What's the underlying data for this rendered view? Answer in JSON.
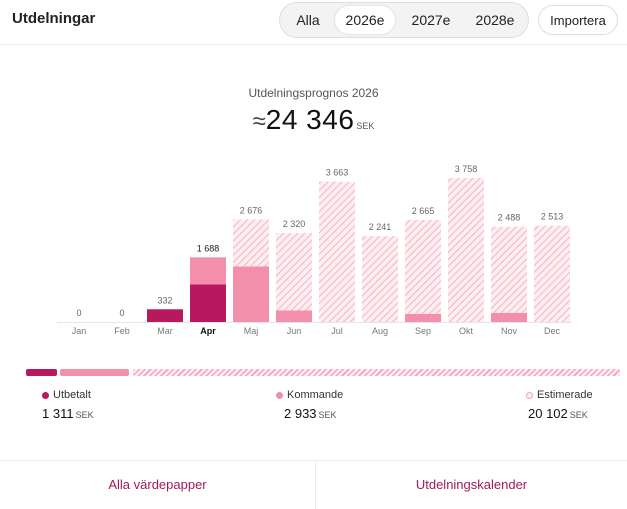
{
  "header": {
    "title": "Utdelningar",
    "tabs": [
      "Alla",
      "2026e",
      "2027e",
      "2028e"
    ],
    "active_tab": "2026e",
    "import_label": "Importera"
  },
  "forecast": {
    "title": "Utdelningsprognos 2026",
    "approx_symbol": "≈",
    "total": "24 346",
    "unit": "SEK"
  },
  "colors": {
    "paid": "#b8195e",
    "upcoming": "#f48fab",
    "estimated_stripe": "#f5a3b8",
    "estimated_bg": "#fdeef2"
  },
  "chart_data": {
    "type": "bar",
    "stacked": true,
    "categories": [
      "Jan",
      "Feb",
      "Mar",
      "Apr",
      "Maj",
      "Jun",
      "Jul",
      "Aug",
      "Sep",
      "Okt",
      "Nov",
      "Dec"
    ],
    "highlighted_category": "Apr",
    "value_labels": [
      "0",
      "0",
      "332",
      "1 688",
      "2 676",
      "2 320",
      "3 663",
      "2 241",
      "2 665",
      "3 758",
      "2 488",
      "2 513"
    ],
    "series": [
      {
        "name": "Utbetalt",
        "values": [
          0,
          0,
          332,
          979,
          0,
          0,
          0,
          0,
          0,
          0,
          0,
          0
        ]
      },
      {
        "name": "Kommande",
        "values": [
          0,
          0,
          0,
          709,
          1450,
          300,
          0,
          0,
          210,
          0,
          240,
          0
        ]
      },
      {
        "name": "Estimerade",
        "values": [
          0,
          0,
          0,
          0,
          1226,
          2020,
          3663,
          2241,
          2455,
          3758,
          2248,
          2513
        ]
      }
    ]
  },
  "summary": {
    "paid": {
      "label": "Utbetalt",
      "value": "1 311",
      "unit": "SEK"
    },
    "upcoming": {
      "label": "Kommande",
      "value": "2 933",
      "unit": "SEK"
    },
    "estimated": {
      "label": "Estimerade",
      "value": "20 102",
      "unit": "SEK"
    }
  },
  "footer": {
    "all_securities": "Alla värdepapper",
    "calendar": "Utdelningskalender"
  }
}
